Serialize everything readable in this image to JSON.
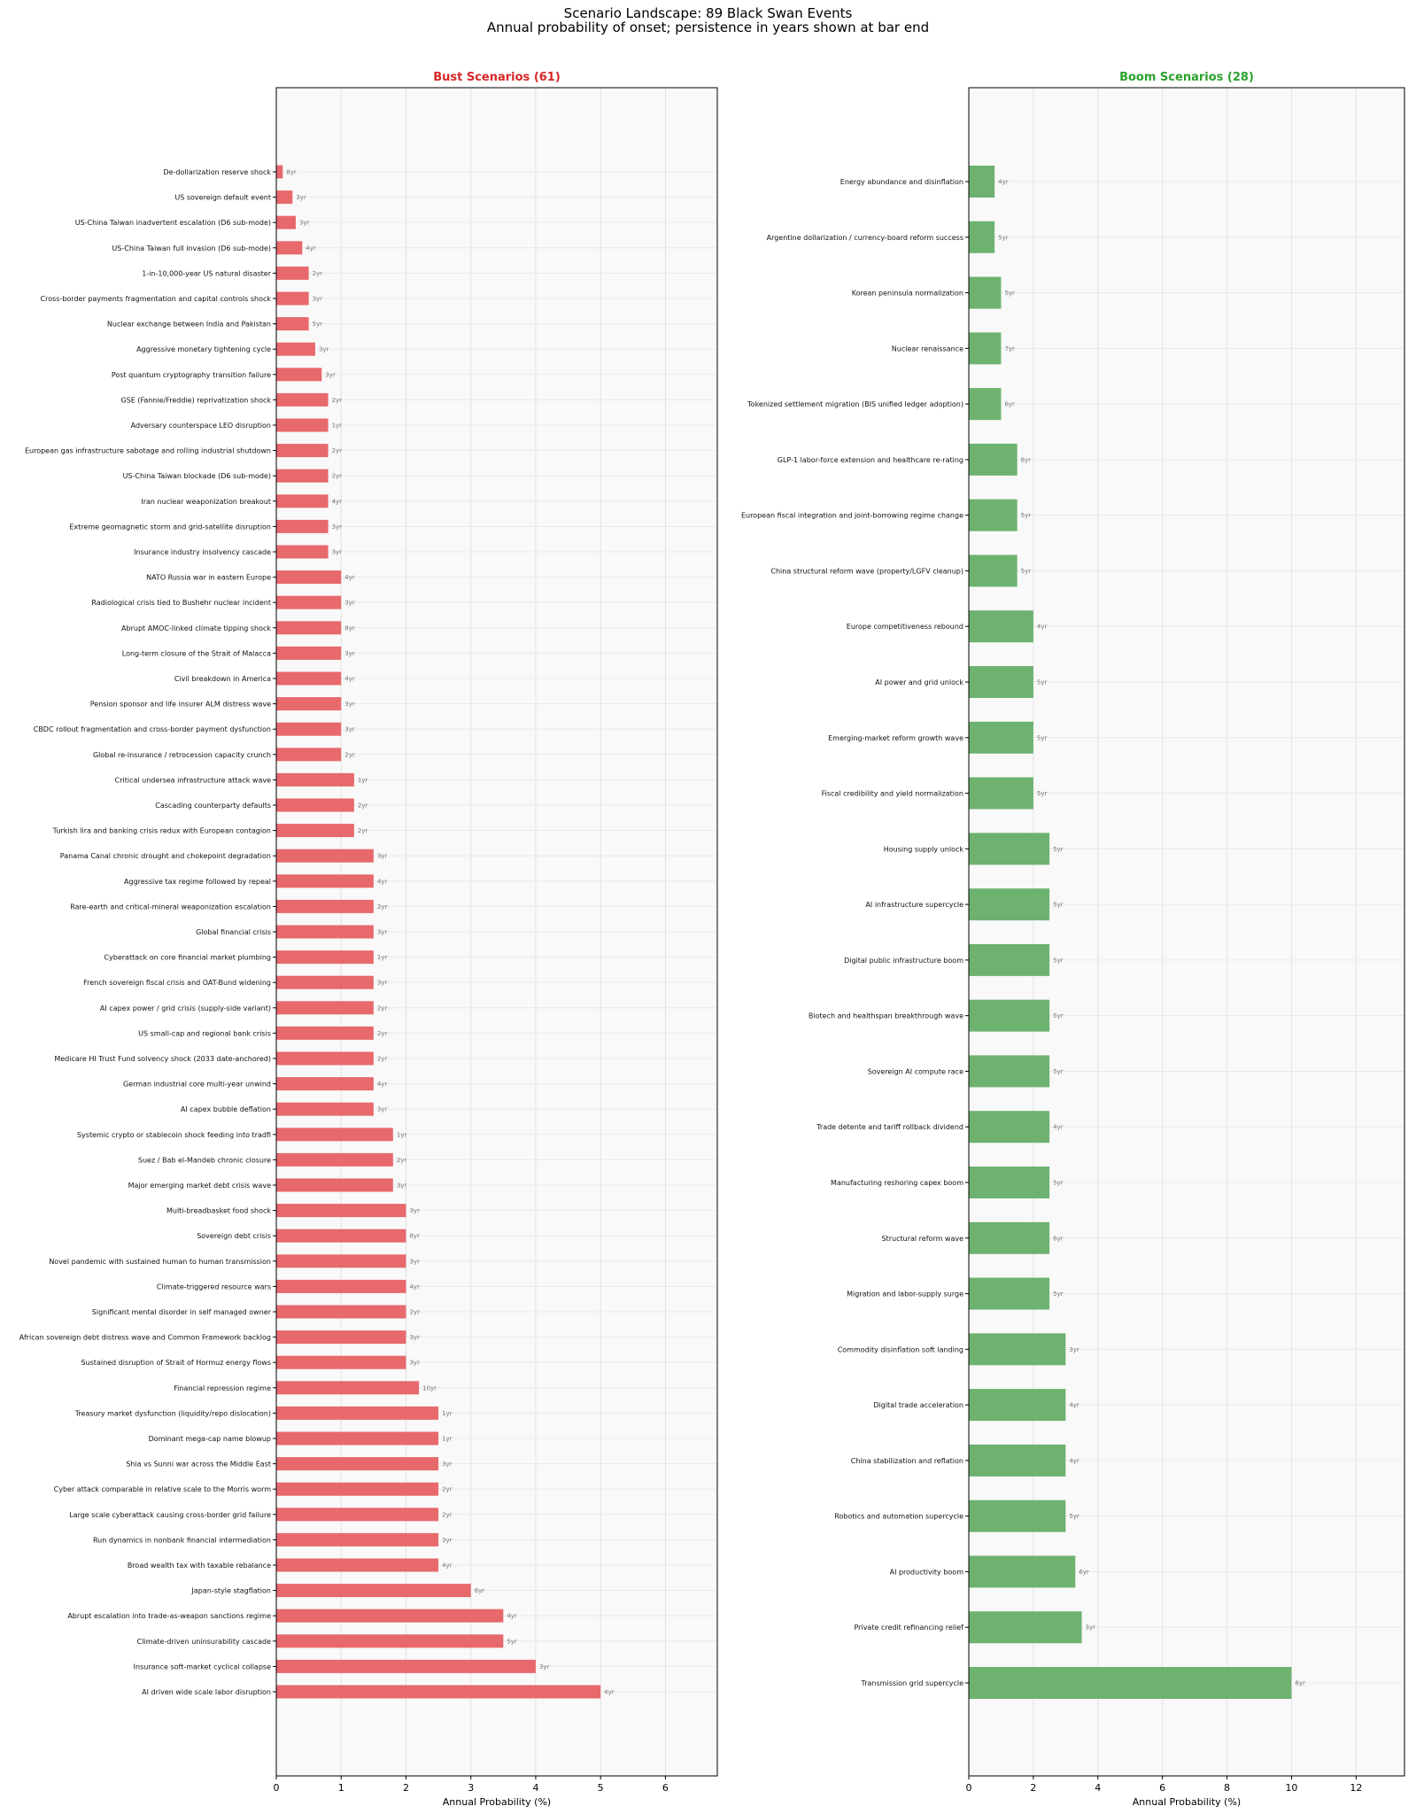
{
  "title_line1": "Scenario Landscape: 89 Black Swan Events",
  "title_line2": "Annual probability of onset; persistence in years shown at bar end",
  "chart_data": [
    {
      "type": "bar",
      "orientation": "horizontal",
      "title": "Bust Scenarios (61)",
      "title_color": "#d62728",
      "bar_color": "#e8696b",
      "xlabel": "Annual Probability (%)",
      "xlim": [
        0,
        6.8
      ],
      "xticks": [
        0,
        1,
        2,
        3,
        4,
        5,
        6
      ],
      "grid": true,
      "categories": [
        "De-dollarization reserve shock",
        "US sovereign default event",
        "US-China Taiwan inadvertent escalation (D6 sub-mode)",
        "US-China Taiwan full invasion (D6 sub-mode)",
        "1-in-10,000-year US natural disaster",
        "Cross-border payments fragmentation and capital controls shock",
        "Nuclear exchange between India and Pakistan",
        "Aggressive monetary tightening cycle",
        "Post quantum cryptography transition failure",
        "GSE (Fannie/Freddie) reprivatization shock",
        "Adversary counterspace LEO disruption",
        "European gas infrastructure sabotage and rolling industrial shutdown",
        "US-China Taiwan blockade (D6 sub-mode)",
        "Iran nuclear weaponization breakout",
        "Extreme geomagnetic storm and grid-satellite disruption",
        "Insurance industry insolvency cascade",
        "NATO Russia war in eastern Europe",
        "Radiological crisis tied to Bushehr nuclear incident",
        "Abrupt AMOC-linked climate tipping shock",
        "Long-term closure of the Strait of Malacca",
        "Civil breakdown in America",
        "Pension sponsor and life insurer ALM distress wave",
        "CBDC rollout fragmentation and cross-border payment dysfunction",
        "Global re-insurance / retrocession capacity crunch",
        "Critical undersea infrastructure attack wave",
        "Cascading counterparty defaults",
        "Turkish lira and banking crisis redux with European contagion",
        "Panama Canal chronic drought and chokepoint degradation",
        "Aggressive tax regime followed by repeal",
        "Rare-earth and critical-mineral weaponization escalation",
        "Global financial crisis",
        "Cyberattack on core financial market plumbing",
        "French sovereign fiscal crisis and OAT-Bund widening",
        "AI capex power / grid crisis (supply-side variant)",
        "US small-cap and regional bank crisis",
        "Medicare HI Trust Fund solvency shock (2033 date-anchored)",
        "German industrial core multi-year unwind",
        "AI capex bubble deflation",
        "Systemic crypto or stablecoin shock feeding into tradfi",
        "Suez / Bab el-Mandeb chronic closure",
        "Major emerging market debt crisis wave",
        "Multi-breadbasket food shock",
        "Sovereign debt crisis",
        "Novel pandemic with sustained human to human transmission",
        "Climate-triggered resource wars",
        "Significant mental disorder in self managed owner",
        "African sovereign debt distress wave and Common Framework backlog",
        "Sustained disruption of Strait of Hormuz energy flows",
        "Financial repression regime",
        "Treasury market dysfunction (liquidity/repo dislocation)",
        "Dominant mega-cap name blowup",
        "Shia vs Sunni war across the Middle East",
        "Cyber attack comparable in relative scale to the Morris worm",
        "Large scale cyberattack causing cross-border grid failure",
        "Run dynamics in nonbank financial intermediation",
        "Broad wealth tax with taxable rebalance",
        "Japan-style stagflation",
        "Abrupt escalation into trade-as-weapon sanctions regime",
        "Climate-driven uninsurability cascade",
        "Insurance soft-market cyclical collapse",
        "AI driven wide scale labor disruption"
      ],
      "values": [
        0.1,
        0.25,
        0.3,
        0.4,
        0.5,
        0.5,
        0.5,
        0.6,
        0.7,
        0.8,
        0.8,
        0.8,
        0.8,
        0.8,
        0.8,
        0.8,
        1,
        1,
        1,
        1,
        1,
        1,
        1,
        1,
        1.2,
        1.2,
        1.2,
        1.5,
        1.5,
        1.5,
        1.5,
        1.5,
        1.5,
        1.5,
        1.5,
        1.5,
        1.5,
        1.5,
        1.8,
        1.8,
        1.8,
        2,
        2,
        2,
        2,
        2,
        2,
        2,
        2.2,
        2.5,
        2.5,
        2.5,
        2.5,
        2.5,
        2.5,
        2.5,
        3,
        3.5,
        3.5,
        4,
        5
      ],
      "persistence_labels": [
        "8yr",
        "3yr",
        "3yr",
        "4yr",
        "2yr",
        "3yr",
        "5yr",
        "3yr",
        "3yr",
        "2yr",
        "1yr",
        "2yr",
        "2yr",
        "4yr",
        "3yr",
        "3yr",
        "4yr",
        "3yr",
        "8yr",
        "3yr",
        "4yr",
        "3yr",
        "3yr",
        "2yr",
        "1yr",
        "2yr",
        "2yr",
        "3yr",
        "4yr",
        "2yr",
        "3yr",
        "1yr",
        "3yr",
        "2yr",
        "2yr",
        "2yr",
        "4yr",
        "3yr",
        "1yr",
        "2yr",
        "3yr",
        "3yr",
        "8yr",
        "3yr",
        "4yr",
        "2yr",
        "3yr",
        "3yr",
        "10yr",
        "1yr",
        "1yr",
        "3yr",
        "2yr",
        "2yr",
        "3yr",
        "4yr",
        "6yr",
        "4yr",
        "5yr",
        "3yr",
        "4yr"
      ]
    },
    {
      "type": "bar",
      "orientation": "horizontal",
      "title": "Boom Scenarios (28)",
      "title_color": "#2ca02c",
      "bar_color": "#6db26f",
      "xlabel": "Annual Probability (%)",
      "xlim": [
        0,
        13.5
      ],
      "xticks": [
        0,
        2,
        4,
        6,
        8,
        10,
        12
      ],
      "grid": true,
      "categories": [
        "Energy abundance and disinflation",
        "Argentine dollarization / currency-board reform success",
        "Korean peninsula normalization",
        "Nuclear renaissance",
        "Tokenized settlement migration (BIS unified ledger adoption)",
        "GLP-1 labor-force extension and healthcare re-rating",
        "European fiscal integration and joint-borrowing regime change",
        "China structural reform wave (property/LGFV cleanup)",
        "Europe competitiveness rebound",
        "AI power and grid unlock",
        "Emerging-market reform growth wave",
        "Fiscal credibility and yield normalization",
        "Housing supply unlock",
        "AI infrastructure supercycle",
        "Digital public infrastructure boom",
        "Biotech and healthspan breakthrough wave",
        "Sovereign AI compute race",
        "Trade detente and tariff rollback dividend",
        "Manufacturing reshoring capex boom",
        "Structural reform wave",
        "Migration and labor-supply surge",
        "Commodity disinflation soft landing",
        "Digital trade acceleration",
        "China stabilization and reflation",
        "Robotics and automation supercycle",
        "AI productivity boom",
        "Private credit refinancing relief",
        "Transmission grid supercycle"
      ],
      "values": [
        0.8,
        0.8,
        1,
        1,
        1,
        1.5,
        1.5,
        1.5,
        2,
        2,
        2,
        2,
        2.5,
        2.5,
        2.5,
        2.5,
        2.5,
        2.5,
        2.5,
        2.5,
        2.5,
        3,
        3,
        3,
        3,
        3.3,
        3.5,
        10
      ],
      "persistence_labels": [
        "4yr",
        "5yr",
        "5yr",
        "7yr",
        "6yr",
        "8yr",
        "5yr",
        "5yr",
        "4yr",
        "5yr",
        "5yr",
        "5yr",
        "5yr",
        "5yr",
        "5yr",
        "5yr",
        "5yr",
        "4yr",
        "5yr",
        "6yr",
        "5yr",
        "3yr",
        "4yr",
        "4yr",
        "5yr",
        "6yr",
        "3yr",
        "6yr"
      ]
    }
  ]
}
